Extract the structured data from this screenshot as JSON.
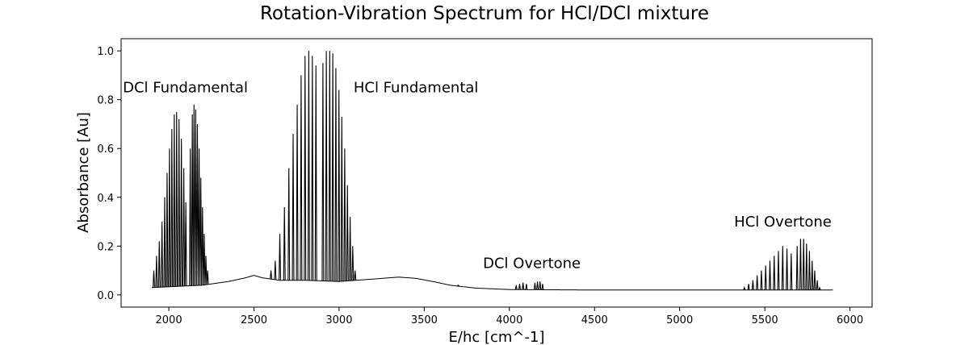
{
  "chart_data": {
    "type": "line",
    "title": "Rotation-Vibration Spectrum for HCl/DCl mixture",
    "xlabel": "E/hc [cm^-1]",
    "ylabel": "Absorbance [Au]",
    "xlim": [
      1720,
      6130
    ],
    "ylim": [
      -0.05,
      1.05
    ],
    "xticks": [
      2000,
      2500,
      3000,
      3500,
      4000,
      4500,
      5000,
      5500,
      6000
    ],
    "yticks": [
      0.0,
      0.2,
      0.4,
      0.6,
      0.8,
      1.0
    ],
    "ytick_labels": [
      "0.0",
      "0.2",
      "0.4",
      "0.6",
      "0.8",
      "1.0"
    ],
    "grid": false,
    "line_color": "#000000",
    "baseline": [
      [
        1900,
        0.03
      ],
      [
        2200,
        0.04
      ],
      [
        2350,
        0.055
      ],
      [
        2450,
        0.07
      ],
      [
        2500,
        0.08
      ],
      [
        2550,
        0.07
      ],
      [
        2650,
        0.06
      ],
      [
        2800,
        0.06
      ],
      [
        3000,
        0.055
      ],
      [
        3200,
        0.065
      ],
      [
        3350,
        0.073
      ],
      [
        3450,
        0.068
      ],
      [
        3550,
        0.055
      ],
      [
        3650,
        0.04
      ],
      [
        3800,
        0.028
      ],
      [
        4000,
        0.022
      ],
      [
        4500,
        0.02
      ],
      [
        5000,
        0.02
      ],
      [
        5400,
        0.02
      ],
      [
        5900,
        0.02
      ]
    ],
    "bands": [
      {
        "name": "DCl Fundamental",
        "lines": [
          [
            1912,
            0.1
          ],
          [
            1928,
            0.16
          ],
          [
            1944,
            0.22
          ],
          [
            1960,
            0.3
          ],
          [
            1976,
            0.4
          ],
          [
            1990,
            0.5
          ],
          [
            2004,
            0.6
          ],
          [
            2018,
            0.68
          ],
          [
            2032,
            0.74
          ],
          [
            2046,
            0.75
          ],
          [
            2060,
            0.72
          ],
          [
            2074,
            0.64
          ],
          [
            2088,
            0.52
          ],
          [
            2100,
            0.38
          ],
          [
            2126,
            0.6
          ],
          [
            2138,
            0.74
          ],
          [
            2148,
            0.78
          ],
          [
            2158,
            0.76
          ],
          [
            2168,
            0.7
          ],
          [
            2178,
            0.6
          ],
          [
            2188,
            0.48
          ],
          [
            2198,
            0.36
          ],
          [
            2208,
            0.25
          ],
          [
            2218,
            0.16
          ],
          [
            2228,
            0.1
          ]
        ]
      },
      {
        "name": "HCl Fundamental",
        "lines": [
          [
            2600,
            0.1
          ],
          [
            2625,
            0.14
          ],
          [
            2652,
            0.25
          ],
          [
            2679,
            0.36
          ],
          [
            2705,
            0.52
          ],
          [
            2730,
            0.66
          ],
          [
            2754,
            0.78
          ],
          [
            2777,
            0.9
          ],
          [
            2800,
            0.98
          ],
          [
            2822,
            1.0
          ],
          [
            2843,
            0.98
          ],
          [
            2864,
            0.94
          ],
          [
            2905,
            0.95
          ],
          [
            2925,
            1.0
          ],
          [
            2945,
            1.0
          ],
          [
            2963,
            0.99
          ],
          [
            2981,
            0.93
          ],
          [
            2999,
            0.84
          ],
          [
            3016,
            0.73
          ],
          [
            3033,
            0.6
          ],
          [
            3049,
            0.45
          ],
          [
            3065,
            0.32
          ],
          [
            3080,
            0.2
          ],
          [
            3094,
            0.1
          ]
        ]
      },
      {
        "name": "DCl Overtone",
        "lines": [
          [
            3700,
            0.04
          ],
          [
            4040,
            0.04
          ],
          [
            4060,
            0.045
          ],
          [
            4080,
            0.05
          ],
          [
            4100,
            0.045
          ],
          [
            4150,
            0.05
          ],
          [
            4165,
            0.055
          ],
          [
            4180,
            0.055
          ],
          [
            4195,
            0.045
          ]
        ]
      },
      {
        "name": "HCl Overtone",
        "lines": [
          [
            5380,
            0.03
          ],
          [
            5405,
            0.045
          ],
          [
            5430,
            0.06
          ],
          [
            5455,
            0.08
          ],
          [
            5480,
            0.1
          ],
          [
            5505,
            0.12
          ],
          [
            5530,
            0.14
          ],
          [
            5555,
            0.16
          ],
          [
            5580,
            0.18
          ],
          [
            5605,
            0.2
          ],
          [
            5630,
            0.19
          ],
          [
            5655,
            0.17
          ],
          [
            5690,
            0.2
          ],
          [
            5710,
            0.23
          ],
          [
            5728,
            0.23
          ],
          [
            5745,
            0.21
          ],
          [
            5762,
            0.18
          ],
          [
            5778,
            0.14
          ],
          [
            5793,
            0.1
          ],
          [
            5808,
            0.06
          ],
          [
            5822,
            0.03
          ]
        ]
      }
    ],
    "annotations": [
      {
        "text": "DCl Fundamental",
        "x": 1730,
        "y": 0.83
      },
      {
        "text": "HCl Fundamental",
        "x": 3085,
        "y": 0.83
      },
      {
        "text": "DCl Overtone",
        "x": 3845,
        "y": 0.11
      },
      {
        "text": "HCl Overtone",
        "x": 5320,
        "y": 0.28
      }
    ]
  }
}
